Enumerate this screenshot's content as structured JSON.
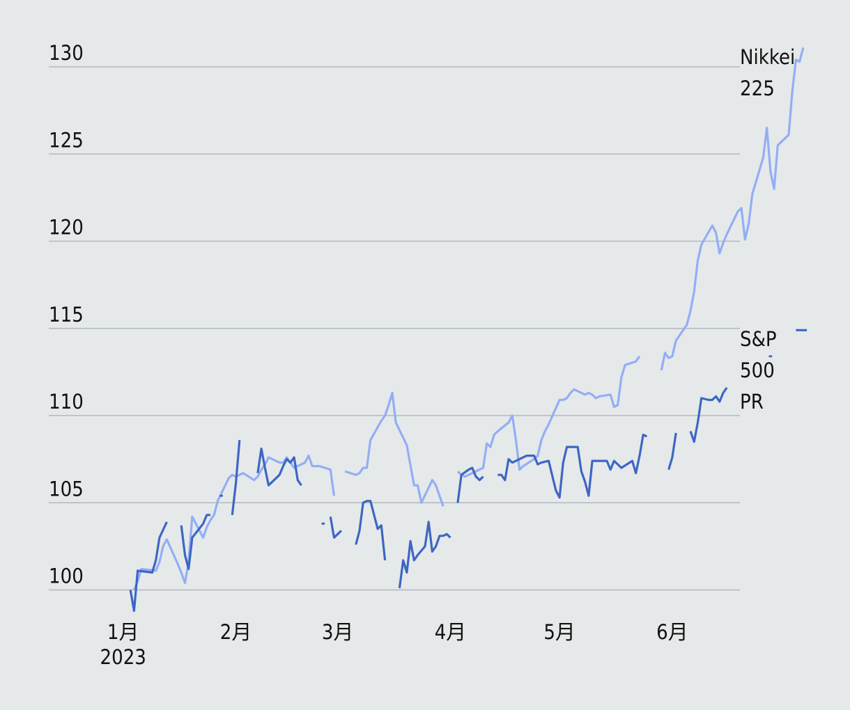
{
  "chart_data": {
    "type": "line",
    "title": "",
    "xlabel": "",
    "ylabel": "",
    "ylim": [
      99,
      131
    ],
    "y_ticks": [
      100,
      105,
      110,
      115,
      120,
      125,
      130
    ],
    "x_ticks": [
      {
        "date": "2023-01-01",
        "label": "1月",
        "sub": "2023"
      },
      {
        "date": "2023-02-01",
        "label": "2月",
        "sub": ""
      },
      {
        "date": "2023-03-01",
        "label": "3月",
        "sub": ""
      },
      {
        "date": "2023-04-01",
        "label": "4月",
        "sub": ""
      },
      {
        "date": "2023-05-01",
        "label": "5月",
        "sub": ""
      },
      {
        "date": "2023-06-01",
        "label": "6月",
        "sub": ""
      }
    ],
    "grid": true,
    "legend": "inline-right",
    "series": [
      {
        "name": "Nikkei 225",
        "label_lines": [
          "Nikkei",
          "225"
        ],
        "color": "#92aef5",
        "points": [
          [
            "2023-01-04",
            100.0
          ],
          [
            "2023-01-05",
            100.5
          ],
          [
            "2023-01-06",
            101.2
          ],
          [
            "2023-01-10",
            101.1
          ],
          [
            "2023-01-11",
            101.6
          ],
          [
            "2023-01-12",
            102.5
          ],
          [
            "2023-01-13",
            102.9
          ],
          [
            "2023-01-16",
            101.5
          ],
          [
            "2023-01-17",
            101.0
          ],
          [
            "2023-01-18",
            100.4
          ],
          [
            "2023-01-19",
            101.6
          ],
          [
            "2023-01-20",
            104.2
          ],
          [
            "2023-01-23",
            103.0
          ],
          [
            "2023-01-24",
            103.6
          ],
          [
            "2023-01-25",
            104.0
          ],
          [
            "2023-01-26",
            104.3
          ],
          [
            "2023-01-27",
            105.1
          ],
          [
            "2023-01-30",
            106.4
          ],
          [
            "2023-01-31",
            106.6
          ],
          [
            "2023-02-01",
            106.5
          ],
          [
            "2023-02-02",
            106.6
          ],
          [
            "2023-02-03",
            106.7
          ],
          [
            "2023-02-06",
            106.3
          ],
          [
            "2023-02-07",
            106.5
          ],
          [
            "2023-02-08",
            106.9
          ],
          [
            "2023-02-09",
            107.2
          ],
          [
            "2023-02-10",
            107.6
          ],
          [
            "2023-02-13",
            107.3
          ],
          [
            "2023-02-14",
            107.3
          ],
          [
            "2023-02-15",
            107.6
          ],
          [
            "2023-02-16",
            107.3
          ],
          [
            "2023-02-17",
            107.0
          ],
          [
            "2023-02-20",
            107.3
          ],
          [
            "2023-02-21",
            107.7
          ],
          [
            "2023-02-22",
            107.1
          ],
          [
            "2023-02-24",
            107.1
          ],
          [
            "2023-02-27",
            106.9
          ],
          [
            "2023-02-28",
            105.4
          ],
          null,
          [
            "2023-03-03",
            106.8
          ],
          [
            "2023-03-06",
            106.6
          ],
          [
            "2023-03-07",
            106.7
          ],
          [
            "2023-03-08",
            107.0
          ],
          [
            "2023-03-09",
            107.0
          ],
          [
            "2023-03-10",
            108.6
          ],
          [
            "2023-03-13",
            109.7
          ],
          [
            "2023-03-14",
            110.0
          ],
          [
            "2023-03-15",
            110.6
          ],
          [
            "2023-03-16",
            111.3
          ],
          [
            "2023-03-17",
            109.6
          ],
          [
            "2023-03-20",
            108.3
          ],
          [
            "2023-03-22",
            106.0
          ],
          [
            "2023-03-23",
            106.0
          ],
          [
            "2023-03-24",
            105.0
          ],
          [
            "2023-03-27",
            106.3
          ],
          [
            "2023-03-28",
            106.0
          ],
          [
            "2023-03-30",
            104.8
          ],
          null,
          [
            "2023-04-03",
            106.8
          ],
          [
            "2023-04-04",
            106.6
          ],
          [
            "2023-04-05",
            106.5
          ],
          [
            "2023-04-06",
            106.6
          ],
          [
            "2023-04-07",
            106.7
          ],
          [
            "2023-04-10",
            107.0
          ],
          [
            "2023-04-11",
            108.4
          ],
          [
            "2023-04-12",
            108.2
          ],
          [
            "2023-04-13",
            108.9
          ],
          [
            "2023-04-14",
            109.1
          ],
          [
            "2023-04-17",
            109.6
          ],
          [
            "2023-04-18",
            110.0
          ],
          [
            "2023-04-19",
            108.6
          ],
          [
            "2023-04-20",
            106.9
          ],
          [
            "2023-04-21",
            107.1
          ],
          [
            "2023-04-24",
            107.5
          ],
          [
            "2023-04-25",
            107.7
          ],
          [
            "2023-04-26",
            108.6
          ],
          [
            "2023-04-27",
            109.1
          ],
          [
            "2023-04-28",
            109.5
          ],
          [
            "2023-05-01",
            110.9
          ],
          [
            "2023-05-02",
            110.9
          ],
          [
            "2023-05-03",
            111.0
          ],
          [
            "2023-05-04",
            111.3
          ],
          [
            "2023-05-05",
            111.5
          ],
          [
            "2023-05-08",
            111.2
          ],
          [
            "2023-05-09",
            111.3
          ],
          [
            "2023-05-10",
            111.2
          ],
          [
            "2023-05-11",
            111.0
          ],
          [
            "2023-05-12",
            111.1
          ],
          [
            "2023-05-15",
            111.2
          ],
          [
            "2023-05-16",
            110.5
          ],
          [
            "2023-05-17",
            110.6
          ],
          [
            "2023-05-18",
            112.2
          ],
          [
            "2023-05-19",
            112.9
          ],
          [
            "2023-05-22",
            113.1
          ],
          [
            "2023-05-23",
            113.4
          ],
          null,
          [
            "2023-05-29",
            112.6
          ],
          [
            "2023-05-30",
            113.6
          ],
          [
            "2023-05-31",
            113.3
          ],
          [
            "2023-06-01",
            113.4
          ],
          [
            "2023-06-02",
            114.3
          ],
          [
            "2023-06-05",
            115.2
          ],
          [
            "2023-06-06",
            116.0
          ],
          [
            "2023-06-07",
            117.1
          ],
          [
            "2023-06-08",
            118.9
          ],
          [
            "2023-06-09",
            119.8
          ],
          [
            "2023-06-12",
            120.9
          ],
          [
            "2023-06-13",
            120.5
          ],
          [
            "2023-06-14",
            119.3
          ],
          [
            "2023-06-15",
            119.9
          ],
          [
            "2023-06-16",
            120.4
          ],
          [
            "2023-06-19",
            121.7
          ],
          [
            "2023-06-20",
            121.9
          ],
          [
            "2023-06-21",
            120.1
          ],
          [
            "2023-06-22",
            121.0
          ],
          [
            "2023-06-23",
            122.7
          ],
          [
            "2023-06-26",
            124.8
          ],
          [
            "2023-06-27",
            126.5
          ],
          [
            "2023-06-28",
            124.0
          ],
          [
            "2023-06-29",
            123.0
          ],
          [
            "2023-06-30",
            125.5
          ],
          [
            "2023-07-03",
            126.1
          ],
          [
            "2023-07-04",
            128.6
          ],
          [
            "2023-07-05",
            130.4
          ],
          [
            "2023-07-06",
            130.3
          ],
          [
            "2023-07-07",
            131.1
          ]
        ]
      },
      {
        "name": "S&P 500 PR",
        "label_lines": [
          "S&P",
          "500",
          "PR"
        ],
        "color": "#3d66c4",
        "points": [
          [
            "2023-01-03",
            100.0
          ],
          [
            "2023-01-04",
            98.8
          ],
          [
            "2023-01-05",
            101.1
          ],
          [
            "2023-01-09",
            101.0
          ],
          [
            "2023-01-10",
            101.7
          ],
          [
            "2023-01-11",
            103.0
          ],
          [
            "2023-01-13",
            103.9
          ],
          null,
          [
            "2023-01-17",
            103.7
          ],
          [
            "2023-01-18",
            102.0
          ],
          [
            "2023-01-19",
            101.2
          ],
          [
            "2023-01-20",
            103.0
          ],
          [
            "2023-01-23",
            103.8
          ],
          [
            "2023-01-24",
            104.3
          ],
          [
            "2023-01-25",
            104.3
          ],
          null,
          [
            "2023-01-28",
            105.4
          ],
          [
            "2023-01-28",
            105.4
          ],
          null,
          [
            "2023-01-31",
            104.3
          ],
          [
            "2023-02-01",
            106.1
          ],
          [
            "2023-02-02",
            108.6
          ],
          null,
          [
            "2023-02-07",
            106.7
          ],
          [
            "2023-02-08",
            108.1
          ],
          [
            "2023-02-09",
            107.0
          ],
          [
            "2023-02-10",
            106.0
          ],
          [
            "2023-02-13",
            106.6
          ],
          [
            "2023-02-14",
            107.1
          ],
          [
            "2023-02-15",
            107.5
          ],
          [
            "2023-02-16",
            107.3
          ],
          [
            "2023-02-17",
            107.6
          ],
          [
            "2023-02-18",
            106.3
          ],
          [
            "2023-02-19",
            106.0
          ],
          null,
          [
            "2023-02-25",
            103.8
          ],
          [
            "2023-02-25",
            103.8
          ],
          null,
          [
            "2023-02-27",
            104.2
          ],
          [
            "2023-02-28",
            103.0
          ],
          [
            "2023-03-01",
            103.2
          ],
          [
            "2023-03-02",
            103.4
          ],
          null,
          [
            "2023-03-06",
            102.6
          ],
          [
            "2023-03-07",
            103.4
          ],
          [
            "2023-03-08",
            105.0
          ],
          [
            "2023-03-09",
            105.1
          ],
          [
            "2023-03-10",
            105.1
          ],
          [
            "2023-03-12",
            103.5
          ],
          [
            "2023-03-13",
            103.7
          ],
          [
            "2023-03-14",
            101.7
          ],
          null,
          [
            "2023-03-18",
            100.1
          ],
          [
            "2023-03-19",
            101.7
          ],
          [
            "2023-03-20",
            101.0
          ],
          [
            "2023-03-21",
            102.8
          ],
          [
            "2023-03-22",
            101.7
          ],
          [
            "2023-03-23",
            102.0
          ],
          [
            "2023-03-25",
            102.5
          ],
          [
            "2023-03-26",
            103.9
          ],
          [
            "2023-03-27",
            102.2
          ],
          [
            "2023-03-28",
            102.5
          ],
          [
            "2023-03-29",
            103.1
          ],
          [
            "2023-03-30",
            103.1
          ],
          [
            "2023-03-31",
            103.2
          ],
          [
            "2023-04-01",
            103.0
          ],
          null,
          [
            "2023-04-03",
            105.0
          ],
          [
            "2023-04-04",
            106.6
          ],
          [
            "2023-04-06",
            106.9
          ],
          [
            "2023-04-07",
            107.0
          ],
          [
            "2023-04-08",
            106.5
          ],
          [
            "2023-04-09",
            106.3
          ],
          [
            "2023-04-10",
            106.5
          ],
          null,
          [
            "2023-04-14",
            106.6
          ],
          [
            "2023-04-15",
            106.6
          ],
          [
            "2023-04-16",
            106.3
          ],
          [
            "2023-04-17",
            107.5
          ],
          [
            "2023-04-18",
            107.3
          ],
          [
            "2023-04-20",
            107.5
          ],
          [
            "2023-04-22",
            107.7
          ],
          [
            "2023-04-24",
            107.7
          ],
          [
            "2023-04-25",
            107.2
          ],
          [
            "2023-04-26",
            107.3
          ],
          [
            "2023-04-28",
            107.4
          ],
          [
            "2023-04-30",
            105.7
          ],
          [
            "2023-05-01",
            105.3
          ],
          [
            "2023-05-02",
            107.3
          ],
          [
            "2023-05-03",
            108.2
          ],
          [
            "2023-05-04",
            108.2
          ],
          [
            "2023-05-06",
            108.2
          ],
          [
            "2023-05-07",
            106.8
          ],
          [
            "2023-05-08",
            106.2
          ],
          [
            "2023-05-09",
            105.4
          ],
          [
            "2023-05-10",
            107.4
          ],
          [
            "2023-05-12",
            107.4
          ],
          [
            "2023-05-14",
            107.4
          ],
          [
            "2023-05-15",
            106.9
          ],
          [
            "2023-05-16",
            107.4
          ],
          [
            "2023-05-18",
            107.0
          ],
          [
            "2023-05-21",
            107.4
          ],
          [
            "2023-05-22",
            106.7
          ],
          [
            "2023-05-23",
            107.7
          ],
          [
            "2023-05-24",
            108.9
          ],
          [
            "2023-05-25",
            108.8
          ],
          null,
          [
            "2023-05-31",
            106.9
          ],
          [
            "2023-06-01",
            107.6
          ],
          [
            "2023-06-02",
            109.0
          ],
          null,
          [
            "2023-06-06",
            109.1
          ],
          [
            "2023-06-07",
            108.5
          ],
          [
            "2023-06-08",
            109.6
          ],
          [
            "2023-06-09",
            111.0
          ],
          [
            "2023-06-11",
            110.9
          ],
          [
            "2023-06-12",
            110.9
          ],
          [
            "2023-06-13",
            111.1
          ],
          [
            "2023-06-14",
            110.8
          ],
          [
            "2023-06-15",
            111.3
          ],
          [
            "2023-06-16",
            111.6
          ],
          null,
          [
            "2023-06-28",
            113.4
          ],
          [
            "2023-06-28",
            113.4
          ],
          null,
          [
            "2023-07-05",
            114.9
          ],
          [
            "2023-07-06",
            114.9
          ],
          [
            "2023-07-08",
            114.9
          ]
        ]
      }
    ]
  }
}
